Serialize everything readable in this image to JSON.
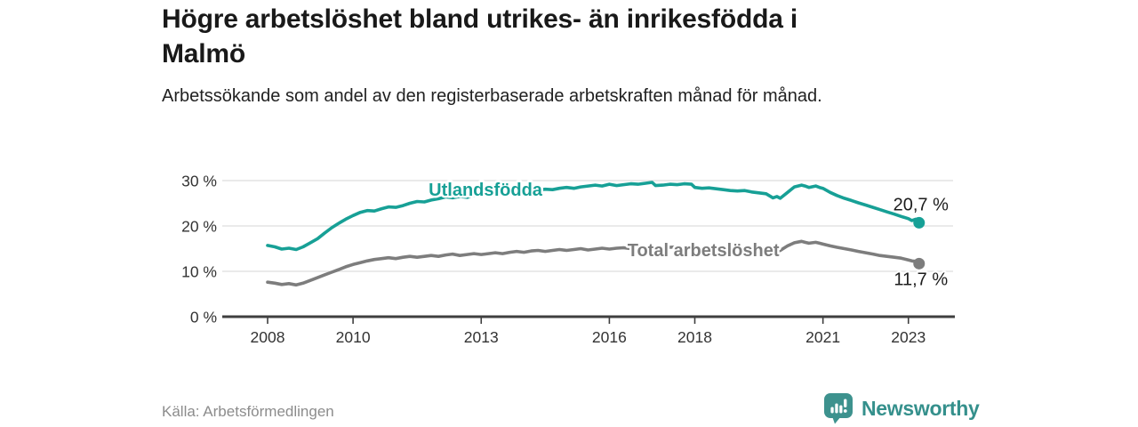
{
  "colors": {
    "accent_teal": "#17A096",
    "line_gray": "#7D7D7D",
    "grid": "#DEDEDE",
    "axis": "#3F3F3F",
    "axis_text": "#333333",
    "text_dark": "#1C1C1C",
    "text_muted": "#8C8C8C",
    "brand_teal": "#35908C"
  },
  "footer": {
    "brand": "Newsworthy",
    "logo_icon": "bar-chart-speech-bubble-icon"
  },
  "chart_data": {
    "type": "line",
    "title": "Högre arbetslöshet bland utrikes- än inrikesfödda i Malmö",
    "subtitle": "Arbetssökande som andel av den registerbaserade arbetskraften månad för månad.",
    "source": "Källa: Arbetsförmedlingen",
    "unit": "%",
    "grid": "horizontal",
    "legend_position": "inline-labels",
    "xlim": [
      2007.9,
      2024.1
    ],
    "ylim": [
      0,
      32
    ],
    "x_ticks": [
      {
        "year": 2008,
        "label": "2008"
      },
      {
        "year": 2010,
        "label": "2010"
      },
      {
        "year": 2013,
        "label": "2013"
      },
      {
        "year": 2016,
        "label": "2016"
      },
      {
        "year": 2018,
        "label": "2018"
      },
      {
        "year": 2021,
        "label": "2021"
      },
      {
        "year": 2023,
        "label": "2023"
      }
    ],
    "y_ticks": [
      {
        "value": 0,
        "label": "0 %"
      },
      {
        "value": 10,
        "label": "10 %"
      },
      {
        "value": 20,
        "label": "20 %"
      },
      {
        "value": 30,
        "label": "30 %"
      }
    ],
    "series": [
      {
        "name": "Utlandsfödda",
        "color": "#17A096",
        "end_label": "20,7 %",
        "end_value": 20.7,
        "end_label_position": "above",
        "inline_label": {
          "text": "Utlandsfödda",
          "x": 2013.1,
          "y": 28.0
        },
        "points": [
          [
            2008.0,
            15.7
          ],
          [
            2008.17,
            15.4
          ],
          [
            2008.33,
            14.9
          ],
          [
            2008.5,
            15.1
          ],
          [
            2008.67,
            14.8
          ],
          [
            2008.83,
            15.4
          ],
          [
            2009.0,
            16.3
          ],
          [
            2009.17,
            17.2
          ],
          [
            2009.33,
            18.4
          ],
          [
            2009.5,
            19.6
          ],
          [
            2009.67,
            20.6
          ],
          [
            2009.83,
            21.5
          ],
          [
            2010.0,
            22.3
          ],
          [
            2010.17,
            23.0
          ],
          [
            2010.33,
            23.4
          ],
          [
            2010.5,
            23.3
          ],
          [
            2010.67,
            23.8
          ],
          [
            2010.83,
            24.2
          ],
          [
            2011.0,
            24.1
          ],
          [
            2011.17,
            24.5
          ],
          [
            2011.33,
            25.0
          ],
          [
            2011.5,
            25.4
          ],
          [
            2011.67,
            25.3
          ],
          [
            2011.83,
            25.7
          ],
          [
            2012.0,
            26.0
          ],
          [
            2012.17,
            26.4
          ],
          [
            2012.33,
            26.2
          ],
          [
            2012.5,
            26.5
          ],
          [
            2012.67,
            26.3
          ],
          [
            2012.83,
            26.7
          ],
          [
            2013.0,
            27.0
          ],
          [
            2013.17,
            26.8
          ],
          [
            2013.33,
            27.2
          ],
          [
            2013.5,
            27.4
          ],
          [
            2013.67,
            27.3
          ],
          [
            2013.83,
            27.6
          ],
          [
            2014.0,
            27.8
          ],
          [
            2014.17,
            27.6
          ],
          [
            2014.33,
            27.9
          ],
          [
            2014.5,
            28.1
          ],
          [
            2014.67,
            28.0
          ],
          [
            2014.83,
            28.3
          ],
          [
            2015.0,
            28.5
          ],
          [
            2015.17,
            28.3
          ],
          [
            2015.33,
            28.6
          ],
          [
            2015.5,
            28.8
          ],
          [
            2015.67,
            29.0
          ],
          [
            2015.83,
            28.8
          ],
          [
            2016.0,
            29.2
          ],
          [
            2016.17,
            28.9
          ],
          [
            2016.33,
            29.1
          ],
          [
            2016.5,
            29.3
          ],
          [
            2016.67,
            29.2
          ],
          [
            2016.83,
            29.4
          ],
          [
            2017.0,
            29.6
          ],
          [
            2017.08,
            28.9
          ],
          [
            2017.25,
            29.0
          ],
          [
            2017.42,
            29.2
          ],
          [
            2017.58,
            29.1
          ],
          [
            2017.75,
            29.3
          ],
          [
            2017.92,
            29.2
          ],
          [
            2018.0,
            28.5
          ],
          [
            2018.17,
            28.3
          ],
          [
            2018.33,
            28.4
          ],
          [
            2018.5,
            28.2
          ],
          [
            2018.67,
            28.0
          ],
          [
            2018.83,
            27.8
          ],
          [
            2019.0,
            27.7
          ],
          [
            2019.17,
            27.8
          ],
          [
            2019.33,
            27.5
          ],
          [
            2019.5,
            27.3
          ],
          [
            2019.67,
            27.1
          ],
          [
            2019.83,
            26.2
          ],
          [
            2019.92,
            26.5
          ],
          [
            2020.0,
            26.1
          ],
          [
            2020.17,
            27.4
          ],
          [
            2020.33,
            28.6
          ],
          [
            2020.5,
            29.0
          ],
          [
            2020.58,
            28.8
          ],
          [
            2020.67,
            28.5
          ],
          [
            2020.83,
            28.8
          ],
          [
            2020.92,
            28.5
          ],
          [
            2021.0,
            28.3
          ],
          [
            2021.17,
            27.4
          ],
          [
            2021.33,
            26.7
          ],
          [
            2021.5,
            26.1
          ],
          [
            2021.67,
            25.6
          ],
          [
            2021.83,
            25.1
          ],
          [
            2022.0,
            24.6
          ],
          [
            2022.17,
            24.1
          ],
          [
            2022.33,
            23.6
          ],
          [
            2022.5,
            23.1
          ],
          [
            2022.67,
            22.6
          ],
          [
            2022.83,
            22.1
          ],
          [
            2023.0,
            21.6
          ],
          [
            2023.08,
            21.2
          ],
          [
            2023.17,
            21.5
          ],
          [
            2023.25,
            20.7
          ]
        ]
      },
      {
        "name": "Total arbetslöshet",
        "color": "#7D7D7D",
        "end_label": "11,7 %",
        "end_value": 11.7,
        "end_label_position": "below",
        "inline_label": {
          "text": "Total arbetslöshet",
          "x": 2018.2,
          "y": 14.7
        },
        "points": [
          [
            2008.0,
            7.6
          ],
          [
            2008.17,
            7.4
          ],
          [
            2008.33,
            7.1
          ],
          [
            2008.5,
            7.3
          ],
          [
            2008.67,
            7.0
          ],
          [
            2008.83,
            7.4
          ],
          [
            2009.0,
            8.0
          ],
          [
            2009.17,
            8.6
          ],
          [
            2009.33,
            9.2
          ],
          [
            2009.5,
            9.8
          ],
          [
            2009.67,
            10.4
          ],
          [
            2009.83,
            11.0
          ],
          [
            2010.0,
            11.5
          ],
          [
            2010.17,
            11.9
          ],
          [
            2010.33,
            12.3
          ],
          [
            2010.5,
            12.6
          ],
          [
            2010.67,
            12.8
          ],
          [
            2010.83,
            13.0
          ],
          [
            2011.0,
            12.8
          ],
          [
            2011.17,
            13.1
          ],
          [
            2011.33,
            13.3
          ],
          [
            2011.5,
            13.1
          ],
          [
            2011.67,
            13.3
          ],
          [
            2011.83,
            13.5
          ],
          [
            2012.0,
            13.3
          ],
          [
            2012.17,
            13.6
          ],
          [
            2012.33,
            13.8
          ],
          [
            2012.5,
            13.5
          ],
          [
            2012.67,
            13.7
          ],
          [
            2012.83,
            13.9
          ],
          [
            2013.0,
            13.7
          ],
          [
            2013.17,
            13.9
          ],
          [
            2013.33,
            14.1
          ],
          [
            2013.5,
            13.9
          ],
          [
            2013.67,
            14.2
          ],
          [
            2013.83,
            14.4
          ],
          [
            2014.0,
            14.2
          ],
          [
            2014.17,
            14.5
          ],
          [
            2014.33,
            14.6
          ],
          [
            2014.5,
            14.4
          ],
          [
            2014.67,
            14.6
          ],
          [
            2014.83,
            14.8
          ],
          [
            2015.0,
            14.6
          ],
          [
            2015.17,
            14.8
          ],
          [
            2015.33,
            15.0
          ],
          [
            2015.5,
            14.7
          ],
          [
            2015.67,
            14.9
          ],
          [
            2015.83,
            15.1
          ],
          [
            2016.0,
            14.9
          ],
          [
            2016.17,
            15.1
          ],
          [
            2016.33,
            15.2
          ],
          [
            2016.5,
            15.0
          ],
          [
            2016.67,
            15.2
          ],
          [
            2016.83,
            15.3
          ],
          [
            2017.0,
            15.4
          ],
          [
            2017.08,
            15.1
          ],
          [
            2017.25,
            15.2
          ],
          [
            2017.42,
            15.3
          ],
          [
            2017.58,
            15.4
          ],
          [
            2017.75,
            15.2
          ],
          [
            2017.92,
            15.3
          ],
          [
            2018.0,
            15.3
          ],
          [
            2018.17,
            15.1
          ],
          [
            2018.33,
            15.2
          ],
          [
            2018.5,
            15.3
          ],
          [
            2018.67,
            15.1
          ],
          [
            2018.83,
            15.0
          ],
          [
            2019.0,
            14.9
          ],
          [
            2019.17,
            15.0
          ],
          [
            2019.33,
            14.8
          ],
          [
            2019.5,
            14.7
          ],
          [
            2019.67,
            14.5
          ],
          [
            2019.83,
            14.3
          ],
          [
            2019.92,
            14.4
          ],
          [
            2020.0,
            14.6
          ],
          [
            2020.17,
            15.6
          ],
          [
            2020.33,
            16.3
          ],
          [
            2020.5,
            16.6
          ],
          [
            2020.58,
            16.4
          ],
          [
            2020.67,
            16.2
          ],
          [
            2020.83,
            16.4
          ],
          [
            2020.92,
            16.2
          ],
          [
            2021.0,
            16.0
          ],
          [
            2021.17,
            15.6
          ],
          [
            2021.33,
            15.3
          ],
          [
            2021.5,
            15.0
          ],
          [
            2021.67,
            14.7
          ],
          [
            2021.83,
            14.4
          ],
          [
            2022.0,
            14.1
          ],
          [
            2022.17,
            13.8
          ],
          [
            2022.33,
            13.5
          ],
          [
            2022.5,
            13.3
          ],
          [
            2022.67,
            13.1
          ],
          [
            2022.83,
            12.9
          ],
          [
            2023.0,
            12.5
          ],
          [
            2023.08,
            12.3
          ],
          [
            2023.17,
            12.2
          ],
          [
            2023.25,
            11.7
          ]
        ]
      }
    ]
  }
}
